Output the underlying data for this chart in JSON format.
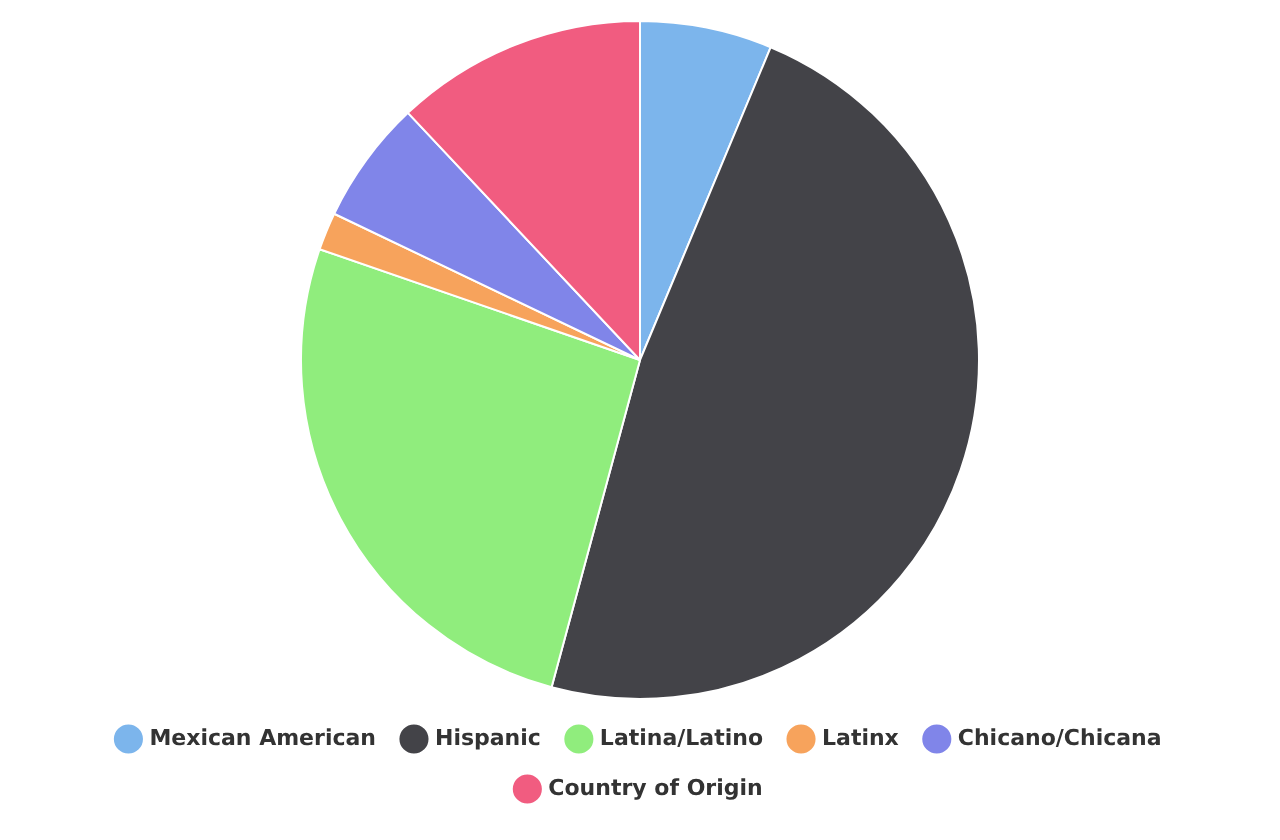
{
  "chart_data": {
    "type": "pie",
    "categories": [
      "Mexican American",
      "Hispanic",
      "Latina/Latino",
      "Latinx",
      "Chicano/Chicana",
      "Country of Origin"
    ],
    "values": [
      6.3,
      47.9,
      26.1,
      1.8,
      5.9,
      12.0
    ],
    "colors": [
      "#7cb5ec",
      "#434348",
      "#90ed7d",
      "#f7a35c",
      "#8085e9",
      "#f15c80"
    ],
    "legend": "bottom"
  }
}
